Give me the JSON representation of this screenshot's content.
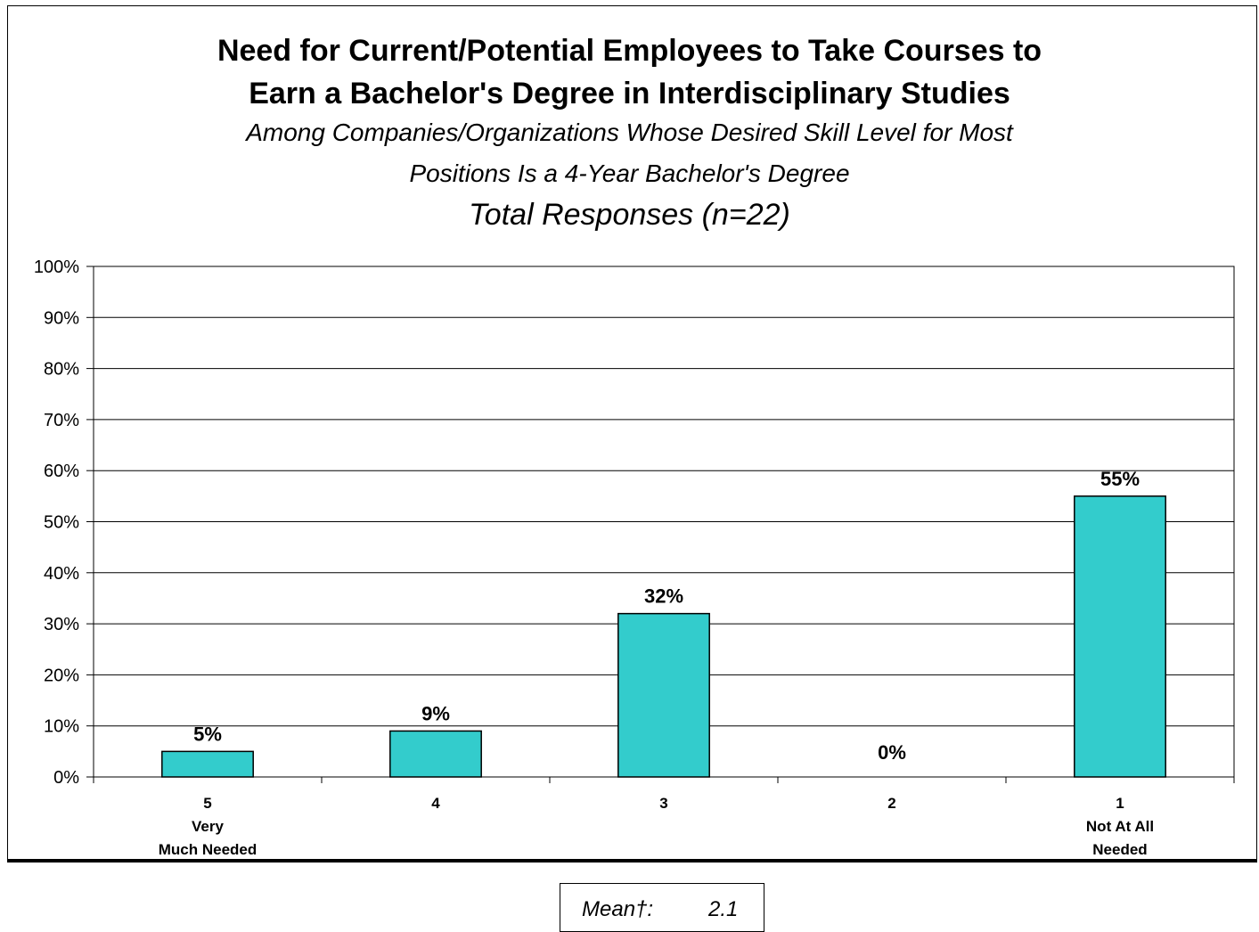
{
  "chart_data": {
    "type": "bar",
    "title": "Need for Current/Potential Employees to Take Courses to Earn a Bachelor's Degree in Interdisciplinary Studies",
    "title_lines": [
      "Need for Current/Potential Employees to Take Courses to",
      "Earn a Bachelor's Degree in Interdisciplinary Studies"
    ],
    "subtitle_lines": [
      "Among Companies/Organizations Whose Desired Skill Level for Most",
      "Positions Is a 4-Year Bachelor's Degree"
    ],
    "subtitle2": "Total Responses (n=22)",
    "categories": [
      {
        "lines": [
          "5",
          "Very",
          "Much Needed"
        ]
      },
      {
        "lines": [
          "4"
        ]
      },
      {
        "lines": [
          "3"
        ]
      },
      {
        "lines": [
          "2"
        ]
      },
      {
        "lines": [
          "1",
          "Not At All",
          "Needed"
        ]
      }
    ],
    "values": [
      5,
      9,
      32,
      0,
      55
    ],
    "data_labels": [
      "5%",
      "9%",
      "32%",
      "0%",
      "55%"
    ],
    "ylim": [
      0,
      100
    ],
    "yticks": [
      "0%",
      "10%",
      "20%",
      "30%",
      "40%",
      "50%",
      "60%",
      "70%",
      "80%",
      "90%",
      "100%"
    ],
    "grid": true,
    "bar_color": "#33CCCC",
    "xlabel": "",
    "ylabel": ""
  },
  "mean": {
    "label": "Mean†:",
    "value": "2.1"
  }
}
